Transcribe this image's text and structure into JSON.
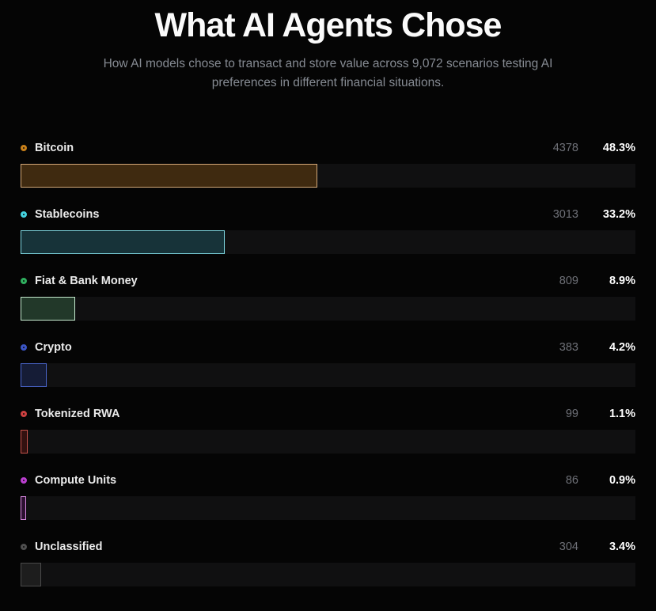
{
  "header": {
    "title": "What AI Agents Chose",
    "subtitle": "How AI models chose to transact and store value across 9,072 scenarios testing AI preferences in different financial situations."
  },
  "rows": [
    {
      "label": "Bitcoin",
      "count": "4378",
      "percent_label": "48.3%",
      "percent_value": 48.3,
      "colors": {
        "ring": "#c9801a",
        "border": "#d3a878",
        "fill": "#3f2a10"
      }
    },
    {
      "label": "Stablecoins",
      "count": "3013",
      "percent_label": "33.2%",
      "percent_value": 33.2,
      "colors": {
        "ring": "#45d4e0",
        "border": "#7fd8e2",
        "fill": "#173339"
      }
    },
    {
      "label": "Fiat & Bank Money",
      "count": "809",
      "percent_label": "8.9%",
      "percent_value": 8.9,
      "colors": {
        "ring": "#2fae5e",
        "border": "#c4e9ce",
        "fill": "#223829"
      }
    },
    {
      "label": "Crypto",
      "count": "383",
      "percent_label": "4.2%",
      "percent_value": 4.2,
      "colors": {
        "ring": "#3b55c4",
        "border": "#4a66cc",
        "fill": "#151c36"
      }
    },
    {
      "label": "Tokenized RWA",
      "count": "99",
      "percent_label": "1.1%",
      "percent_value": 1.1,
      "colors": {
        "ring": "#cc4040",
        "border": "#c4524a",
        "fill": "#331110"
      }
    },
    {
      "label": "Compute Units",
      "count": "86",
      "percent_label": "0.9%",
      "percent_value": 0.9,
      "colors": {
        "ring": "#bb3fd0",
        "border": "#d98ae0",
        "fill": "#2c1030"
      }
    },
    {
      "label": "Unclassified",
      "count": "304",
      "percent_label": "3.4%",
      "percent_value": 3.4,
      "colors": {
        "ring": "#4f4f4f",
        "border": "#4a4a4a",
        "fill": "#1d1d1d"
      }
    }
  ],
  "chart_data": {
    "type": "bar",
    "orientation": "horizontal",
    "title": "What AI Agents Chose",
    "subtitle": "How AI models chose to transact and store value across 9,072 scenarios testing AI preferences in different financial situations.",
    "total_scenarios": 9072,
    "categories": [
      "Bitcoin",
      "Stablecoins",
      "Fiat & Bank Money",
      "Crypto",
      "Tokenized RWA",
      "Compute Units",
      "Unclassified"
    ],
    "series": [
      {
        "name": "count",
        "values": [
          4378,
          3013,
          809,
          383,
          99,
          86,
          304
        ]
      },
      {
        "name": "percent",
        "values": [
          48.3,
          33.2,
          8.9,
          4.2,
          1.1,
          0.9,
          3.4
        ]
      }
    ],
    "xlim": [
      0,
      100
    ],
    "xlabel": "",
    "ylabel": "",
    "grid": false,
    "legend_position": "inline-left-of-each-bar",
    "bar_colors": [
      "#3f2a10",
      "#173339",
      "#223829",
      "#151c36",
      "#331110",
      "#2c1030",
      "#1d1d1d"
    ],
    "bar_border_colors": [
      "#d3a878",
      "#7fd8e2",
      "#c4e9ce",
      "#4a66cc",
      "#c4524a",
      "#d98ae0",
      "#4a4a4a"
    ],
    "background_color": "#050505",
    "track_color": "#101011"
  }
}
